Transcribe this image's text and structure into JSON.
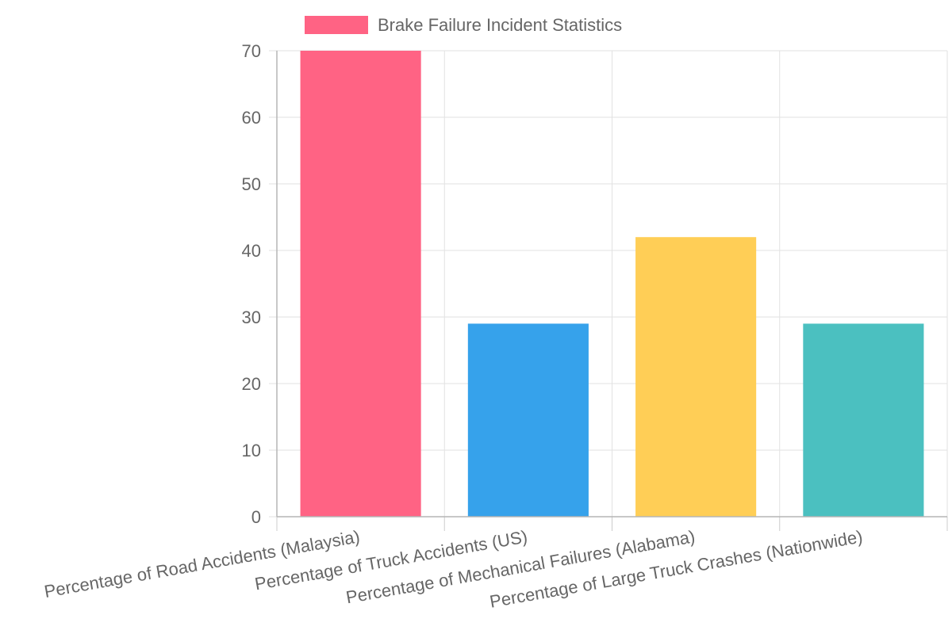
{
  "chart_data": {
    "type": "bar",
    "categories": [
      "Percentage of Road Accidents (Malaysia)",
      "Percentage of Truck Accidents (US)",
      "Percentage of Mechanical Failures (Alabama)",
      "Percentage of Large Truck Crashes (Nationwide)"
    ],
    "series": [
      {
        "name": "Brake Failure Incident Statistics",
        "values": [
          70,
          29,
          42,
          29
        ]
      }
    ],
    "bar_colors": [
      "#ff6384",
      "#36a2eb",
      "#ffce56",
      "#4bc0c0"
    ],
    "ylim": [
      0,
      70
    ],
    "yticks": [
      0,
      10,
      20,
      30,
      40,
      50,
      60,
      70
    ],
    "grid": true,
    "legend_position": "top",
    "legend_color": "#ff6384",
    "title": "",
    "xlabel": "",
    "ylabel": ""
  }
}
